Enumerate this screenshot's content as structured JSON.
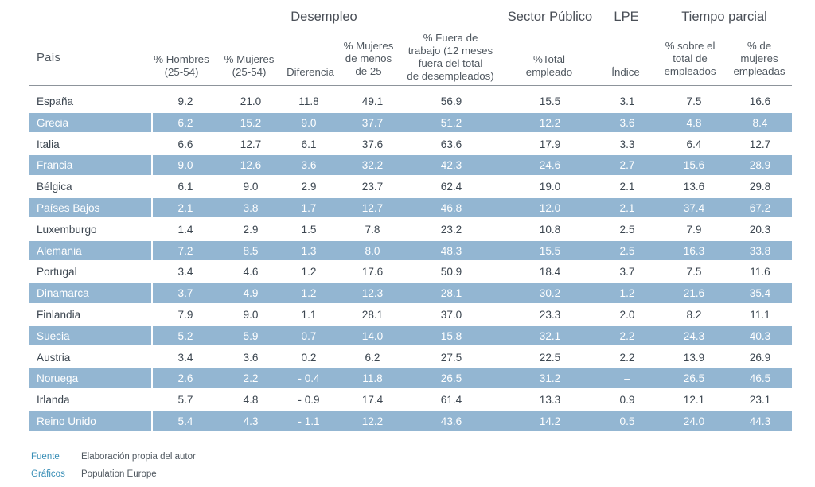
{
  "groups": {
    "desempleo": "Desempleo",
    "sector_publico": "Sector Público",
    "lpe": "LPE",
    "tiempo_parcial": "Tiempo parcial"
  },
  "columns": {
    "pais": "País",
    "hombres": [
      "% Hombres",
      "(25-54)"
    ],
    "mujeres": [
      "% Mujeres",
      "(25-54)"
    ],
    "diferencia": [
      "Diferencia"
    ],
    "mujeres_menos_25": [
      "% Mujeres",
      "de menos",
      "de 25"
    ],
    "fuera_trabajo": [
      "% Fuera de",
      "trabajo (12 meses",
      "fuera del total",
      "de desempleados)"
    ],
    "total_empleado": [
      "%Total",
      "empleado"
    ],
    "indice": [
      "Índice"
    ],
    "sobre_total": [
      "% sobre el",
      "total de",
      "empleados"
    ],
    "mujeres_empleadas": [
      "% de",
      "mujeres",
      "empleadas"
    ]
  },
  "rows": [
    [
      "España",
      "9.2",
      "21.0",
      "11.8",
      "49.1",
      "56.9",
      "15.5",
      "3.1",
      "7.5",
      "16.6"
    ],
    [
      "Grecia",
      "6.2",
      "15.2",
      "9.0",
      "37.7",
      "51.2",
      "12.2",
      "3.6",
      "4.8",
      "8.4"
    ],
    [
      "Italia",
      "6.6",
      "12.7",
      "6.1",
      "37.6",
      "63.6",
      "17.9",
      "3.3",
      "6.4",
      "12.7"
    ],
    [
      "Francia",
      "9.0",
      "12.6",
      "3.6",
      "32.2",
      "42.3",
      "24.6",
      "2.7",
      "15.6",
      "28.9"
    ],
    [
      "Bélgica",
      "6.1",
      "9.0",
      "2.9",
      "23.7",
      "62.4",
      "19.0",
      "2.1",
      "13.6",
      "29.8"
    ],
    [
      "Países Bajos",
      "2.1",
      "3.8",
      "1.7",
      "12.7",
      "46.8",
      "12.0",
      "2.1",
      "37.4",
      "67.2"
    ],
    [
      "Luxemburgo",
      "1.4",
      "2.9",
      "1.5",
      "7.8",
      "23.2",
      "10.8",
      "2.5",
      "7.9",
      "20.3"
    ],
    [
      "Alemania",
      "7.2",
      "8.5",
      "1.3",
      "8.0",
      "48.3",
      "15.5",
      "2.5",
      "16.3",
      "33.8"
    ],
    [
      "Portugal",
      "3.4",
      "4.6",
      "1.2",
      "17.6",
      "50.9",
      "18.4",
      "3.7",
      "7.5",
      "11.6"
    ],
    [
      "Dinamarca",
      "3.7",
      "4.9",
      "1.2",
      "12.3",
      "28.1",
      "30.2",
      "1.2",
      "21.6",
      "35.4"
    ],
    [
      "Finlandia",
      "7.9",
      "9.0",
      "1.1",
      "28.1",
      "37.0",
      "23.3",
      "2.0",
      "8.2",
      "11.1"
    ],
    [
      "Suecia",
      "5.2",
      "5.9",
      "0.7",
      "14.0",
      "15.8",
      "32.1",
      "2.2",
      "24.3",
      "40.3"
    ],
    [
      "Austria",
      "3.4",
      "3.6",
      "0.2",
      "6.2",
      "27.5",
      "22.5",
      "2.2",
      "13.9",
      "26.9"
    ],
    [
      "Noruega",
      "2.6",
      "2.2",
      "- 0.4",
      "11.8",
      "26.5",
      "31.2",
      "–",
      "26.5",
      "46.5"
    ],
    [
      "Irlanda",
      "5.7",
      "4.8",
      "- 0.9",
      "17.4",
      "61.4",
      "13.3",
      "0.9",
      "12.1",
      "23.1"
    ],
    [
      "Reino Unido",
      "5.4",
      "4.3",
      "- 1.1",
      "12.2",
      "43.6",
      "14.2",
      "0.5",
      "24.0",
      "44.3"
    ]
  ],
  "footer": {
    "fuente_label": "Fuente",
    "fuente_text": "Elaboración propia del autor",
    "graficos_label": "Gráficos",
    "graficos_text": "Population Europe"
  },
  "colors": {
    "row_shade": "#93b6d2",
    "footer_label": "#3a8fb7"
  }
}
